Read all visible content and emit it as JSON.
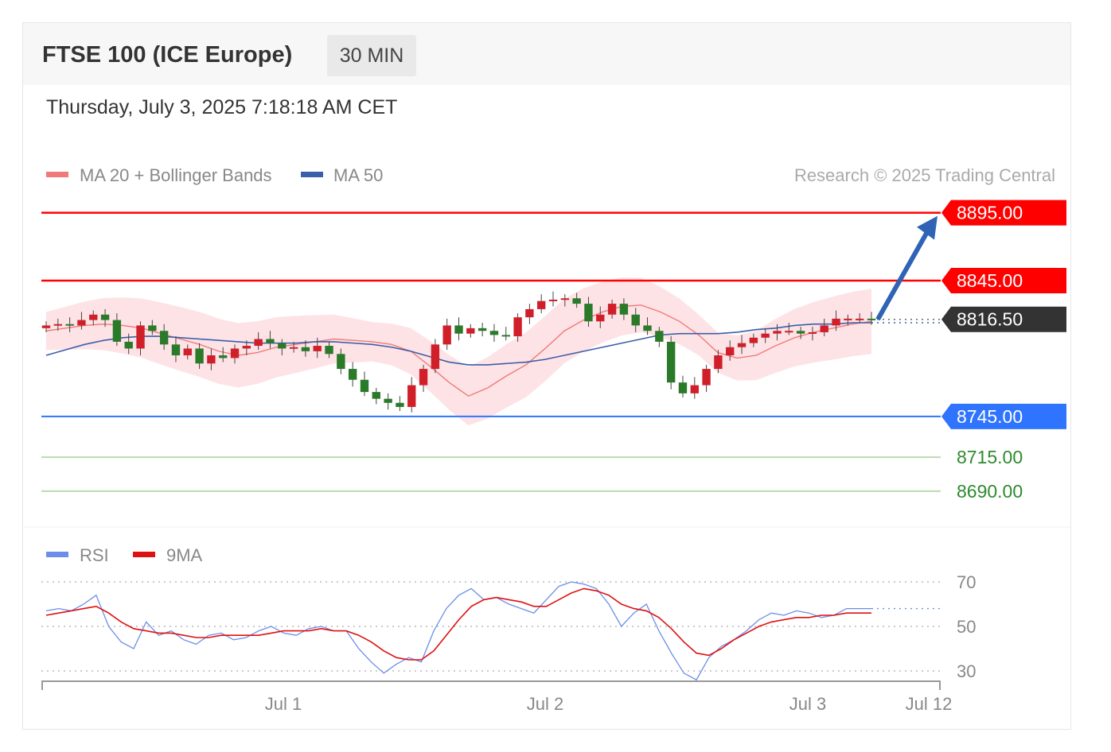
{
  "header": {
    "instrument": "FTSE 100 (ICE Europe)",
    "interval": "30 MIN",
    "datetime": "Thursday, July 3, 2025 7:18:18 AM CET"
  },
  "legend": {
    "ma20": "MA 20 + Bollinger Bands",
    "ma50": "MA 50",
    "copyright": "Research © 2025 Trading Central",
    "rsi": "RSI",
    "rsi_ma": "9MA"
  },
  "colors": {
    "resistance": "#ff0000",
    "support": "#2f74ff",
    "current": "#333333",
    "target": "#2f8a2f",
    "ma20": "#f07a7a",
    "ma50": "#3b5ea8",
    "band": "#fde0e3",
    "bull": "#d11f2a",
    "bear": "#2a7a2a",
    "rsi": "#6c8ee8",
    "rsi_ma": "#e01010",
    "arrow": "#2f63b6"
  },
  "chart_data": [
    {
      "type": "line",
      "levels": {
        "resistance": [
          "8895.00",
          "8845.00"
        ],
        "current": "8816.50",
        "support": [
          "8745.00"
        ],
        "targets": [
          "8715.00",
          "8690.00"
        ]
      },
      "ylim": [
        8670,
        8910
      ],
      "x_ticks": [
        "Jul 1",
        "Jul 2",
        "Jul 3",
        "Jul 12"
      ],
      "series": [
        {
          "name": "MA 20 + Bollinger Bands",
          "values": [
            8808,
            8810,
            8812,
            8813,
            8812,
            8810,
            8806,
            8802,
            8798,
            8793,
            8790,
            8792,
            8796,
            8798,
            8800,
            8802,
            8801,
            8800,
            8798,
            8793,
            8782,
            8770,
            8760,
            8766,
            8775,
            8783,
            8795,
            8808,
            8816,
            8822,
            8826,
            8827,
            8822,
            8815,
            8805,
            8792,
            8788,
            8790,
            8797,
            8803,
            8807,
            8810,
            8813,
            8815
          ]
        },
        {
          "name": "MA 50",
          "values": [
            8790,
            8794,
            8798,
            8801,
            8803,
            8804,
            8804,
            8803,
            8802,
            8801,
            8800,
            8799,
            8799,
            8799,
            8800,
            8800,
            8799,
            8798,
            8796,
            8793,
            8789,
            8785,
            8783,
            8783,
            8784,
            8785,
            8787,
            8790,
            8793,
            8796,
            8799,
            8802,
            8805,
            8806,
            8806,
            8806,
            8807,
            8809,
            8810,
            8812,
            8813,
            8813,
            8814,
            8814
          ]
        },
        {
          "name": "candles_close",
          "values": [
            8812,
            8813,
            8812,
            8816,
            8820,
            8816,
            8800,
            8795,
            8812,
            8808,
            8798,
            8790,
            8795,
            8784,
            8790,
            8788,
            8795,
            8797,
            8802,
            8799,
            8795,
            8796,
            8793,
            8797,
            8791,
            8780,
            8772,
            8763,
            8758,
            8755,
            8752,
            8768,
            8780,
            8798,
            8812,
            8806,
            8810,
            8808,
            8805,
            8804,
            8818,
            8824,
            8830,
            8831,
            8832,
            8828,
            8815,
            8820,
            8828,
            8820,
            8812,
            8808,
            8800,
            8770,
            8762,
            8768,
            8780,
            8790,
            8796,
            8799,
            8803,
            8806,
            8808,
            8808,
            8806,
            8807,
            8812,
            8817,
            8817,
            8817,
            8816.5
          ]
        }
      ]
    },
    {
      "type": "line",
      "ylim": [
        20,
        80
      ],
      "y_ticks": [
        "70",
        "50",
        "30"
      ],
      "series": [
        {
          "name": "RSI",
          "values": [
            57,
            58,
            57,
            60,
            64,
            50,
            43,
            40,
            52,
            46,
            48,
            44,
            42,
            46,
            47,
            44,
            45,
            48,
            50,
            47,
            46,
            49,
            50,
            48,
            48,
            40,
            34,
            29,
            33,
            36,
            34,
            48,
            58,
            64,
            67,
            62,
            63,
            60,
            58,
            56,
            62,
            68,
            70,
            69,
            67,
            60,
            50,
            56,
            60,
            48,
            38,
            29,
            26,
            36,
            41,
            44,
            48,
            53,
            56,
            55,
            57,
            56,
            54,
            55,
            58,
            58,
            58
          ]
        },
        {
          "name": "9MA",
          "values": [
            55,
            56,
            57,
            58,
            59,
            56,
            52,
            49,
            48,
            47,
            47,
            46,
            45,
            45,
            46,
            46,
            46,
            46,
            47,
            48,
            48,
            48,
            49,
            48,
            48,
            46,
            43,
            39,
            36,
            35,
            35,
            39,
            46,
            53,
            59,
            62,
            63,
            62,
            61,
            59,
            59,
            62,
            65,
            67,
            66,
            64,
            60,
            58,
            57,
            54,
            49,
            43,
            38,
            37,
            40,
            44,
            47,
            50,
            52,
            53,
            54,
            54,
            55,
            55,
            56,
            56,
            56
          ]
        }
      ]
    }
  ]
}
